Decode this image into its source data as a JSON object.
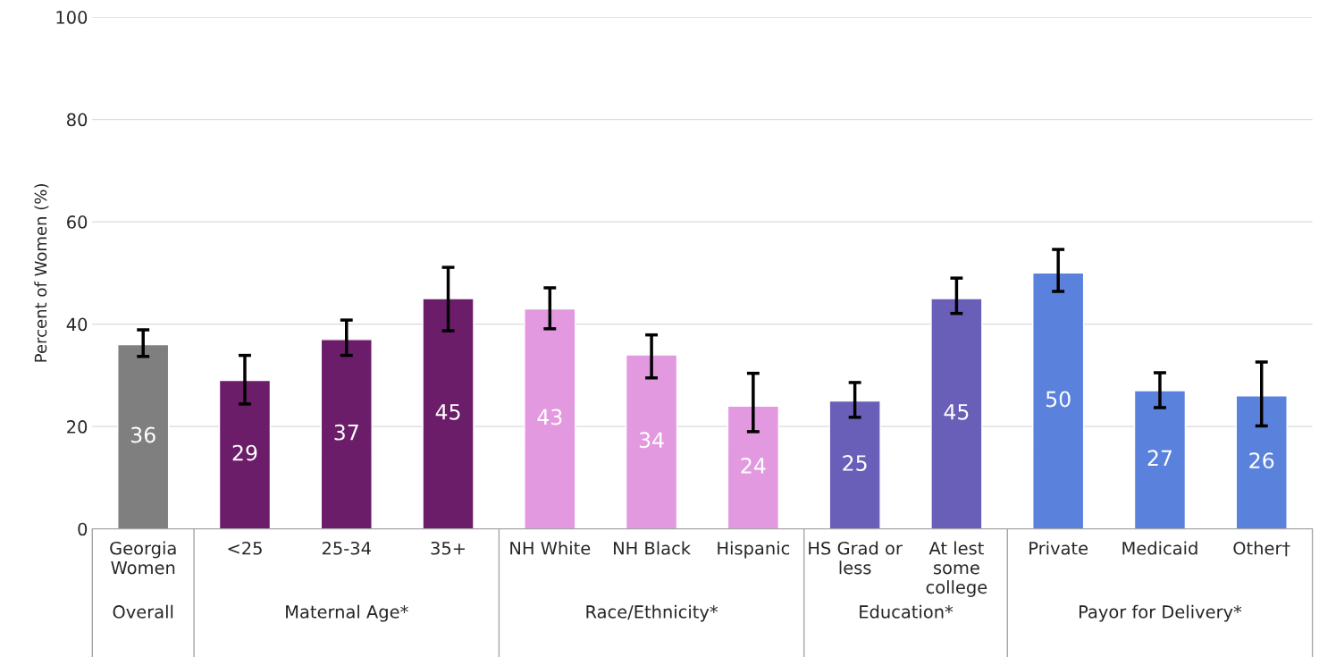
{
  "chart_data": {
    "type": "bar",
    "ylabel": "Percent of Women (%)",
    "categories": [
      "Georgia\nWomen",
      "<25",
      "25-34",
      "35+",
      "NH White",
      "NH Black",
      "Hispanic",
      "HS Grad or\nless",
      "At lest\nsome\ncollege",
      "Private",
      "Medicaid",
      "Other†"
    ],
    "values": [
      36,
      29,
      37,
      45,
      43,
      34,
      24,
      25,
      45,
      50,
      27,
      26
    ],
    "colors": [
      "#7f7f7f",
      "#6c1d6a",
      "#6c1d6a",
      "#6c1d6a",
      "#e399e0",
      "#e399e0",
      "#e399e0",
      "#6a5fb8",
      "#6a5fb8",
      "#5a82dc",
      "#5a82dc",
      "#5a82dc"
    ],
    "errors": [
      [
        33.7,
        38.9
      ],
      [
        24.4,
        33.9
      ],
      [
        33.9,
        40.8
      ],
      [
        38.7,
        51.1
      ],
      [
        39.1,
        47.1
      ],
      [
        29.5,
        37.9
      ],
      [
        19.0,
        30.4
      ],
      [
        21.8,
        28.6
      ],
      [
        42.1,
        49.0
      ],
      [
        46.4,
        54.6
      ],
      [
        23.7,
        30.5
      ],
      [
        20.1,
        32.6
      ]
    ],
    "data_labels": true,
    "annotations": [
      "Overall",
      "Maternal Age*",
      "Race/Ethnicity*",
      "Education*",
      "Payor for Delivery*"
    ],
    "ylim": [
      0,
      100
    ],
    "yticks": [
      0,
      20,
      40,
      60,
      80,
      100
    ],
    "grid": "y"
  }
}
